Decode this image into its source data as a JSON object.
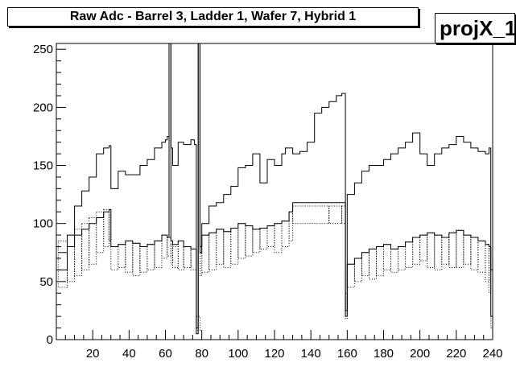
{
  "header": {
    "title": "Raw Adc - Barrel 3, Ladder 1, Wafer 7, Hybrid 1",
    "stats_name": "projX_1"
  },
  "chart_data": {
    "type": "line",
    "title": "Raw Adc - Barrel 3, Ladder 1, Wafer 7, Hybrid 1",
    "xlabel": "",
    "ylabel": "",
    "xlim": [
      0,
      240
    ],
    "ylim": [
      0,
      255
    ],
    "x_ticks": [
      20,
      40,
      60,
      80,
      100,
      120,
      140,
      160,
      180,
      200,
      220,
      240
    ],
    "y_ticks": [
      0,
      50,
      100,
      150,
      200,
      250
    ],
    "y_tick_labels": [
      "0",
      "50",
      "100",
      "150",
      "200",
      "250"
    ],
    "grid": false,
    "legend": "none",
    "series": [
      {
        "style": "step",
        "x": [
          1,
          6,
          10,
          14,
          18,
          22,
          26,
          29,
          30,
          34,
          38,
          42,
          46,
          50,
          54,
          58,
          60,
          61,
          62,
          63,
          64,
          67,
          70,
          74,
          76,
          77,
          78,
          79,
          80,
          84,
          88,
          92,
          96,
          100,
          104,
          108,
          112,
          116,
          120,
          124,
          126,
          128,
          130,
          134,
          138,
          142,
          146,
          150,
          154,
          157,
          158,
          159,
          160,
          164,
          168,
          172,
          176,
          180,
          184,
          188,
          192,
          196,
          200,
          204,
          208,
          212,
          216,
          220,
          224,
          228,
          232,
          236,
          238,
          239,
          240
        ],
        "y": [
          60,
          90,
          115,
          128,
          140,
          160,
          165,
          167,
          130,
          145,
          142,
          142,
          150,
          155,
          165,
          170,
          172,
          175,
          255,
          165,
          150,
          170,
          168,
          172,
          168,
          10,
          255,
          80,
          100,
          115,
          118,
          125,
          132,
          148,
          150,
          160,
          135,
          155,
          150,
          160,
          165,
          165,
          160,
          162,
          170,
          195,
          200,
          205,
          210,
          212,
          212,
          20,
          125,
          135,
          145,
          150,
          150,
          155,
          160,
          165,
          170,
          178,
          160,
          150,
          160,
          165,
          168,
          175,
          170,
          165,
          162,
          160,
          165,
          20,
          15
        ]
      },
      {
        "style": "step",
        "x": [
          1,
          6,
          10,
          14,
          18,
          22,
          26,
          29,
          30,
          34,
          38,
          42,
          46,
          50,
          54,
          58,
          61,
          62,
          63,
          64,
          67,
          70,
          74,
          77,
          78,
          79,
          80,
          84,
          88,
          92,
          96,
          100,
          104,
          108,
          112,
          116,
          120,
          124,
          128,
          130,
          150,
          157,
          158,
          159,
          160,
          164,
          168,
          172,
          176,
          180,
          184,
          188,
          192,
          196,
          200,
          204,
          208,
          212,
          216,
          220,
          224,
          228,
          232,
          236,
          238,
          239,
          240
        ],
        "y": [
          75,
          80,
          90,
          95,
          100,
          105,
          110,
          112,
          80,
          82,
          85,
          83,
          80,
          82,
          85,
          90,
          88,
          255,
          85,
          82,
          85,
          80,
          78,
          5,
          255,
          75,
          90,
          92,
          95,
          93,
          96,
          100,
          98,
          95,
          96,
          98,
          100,
          102,
          110,
          118,
          118,
          118,
          118,
          25,
          65,
          70,
          75,
          78,
          80,
          82,
          78,
          80,
          84,
          88,
          90,
          92,
          90,
          88,
          92,
          94,
          90,
          88,
          85,
          82,
          80,
          60,
          15
        ]
      }
    ],
    "bands": [
      {
        "x": [
          1,
          6,
          10,
          14,
          18,
          22,
          26,
          29,
          30,
          34,
          38,
          42,
          46,
          50,
          54,
          58,
          61,
          63,
          64,
          67,
          70,
          74,
          77,
          79,
          80,
          84,
          88,
          92,
          96,
          100,
          104,
          108,
          112,
          116,
          120,
          124,
          128,
          130,
          150,
          157,
          159,
          160,
          164,
          168,
          172,
          176,
          180,
          184,
          188,
          192,
          196,
          200,
          204,
          208,
          212,
          216,
          220,
          224,
          228,
          232,
          236,
          238,
          239
        ],
        "low": [
          45,
          50,
          55,
          60,
          65,
          75,
          80,
          85,
          60,
          62,
          58,
          55,
          58,
          60,
          62,
          70,
          72,
          65,
          62,
          60,
          62,
          60,
          8,
          55,
          58,
          60,
          65,
          62,
          65,
          70,
          72,
          75,
          78,
          80,
          75,
          80,
          85,
          100,
          100,
          100,
          18,
          45,
          50,
          55,
          52,
          55,
          60,
          58,
          60,
          62,
          65,
          68,
          62,
          60,
          65,
          62,
          62,
          65,
          60,
          58,
          50,
          40,
          10
        ],
        "high": [
          85,
          90,
          95,
          100,
          105,
          110,
          112,
          112,
          80,
          82,
          85,
          83,
          80,
          82,
          85,
          90,
          88,
          82,
          80,
          85,
          80,
          78,
          20,
          75,
          90,
          92,
          95,
          93,
          96,
          100,
          98,
          95,
          96,
          98,
          100,
          102,
          110,
          115,
          115,
          115,
          40,
          65,
          70,
          75,
          78,
          80,
          82,
          78,
          80,
          84,
          88,
          90,
          92,
          90,
          88,
          92,
          94,
          90,
          88,
          85,
          82,
          78,
          20
        ]
      }
    ]
  }
}
